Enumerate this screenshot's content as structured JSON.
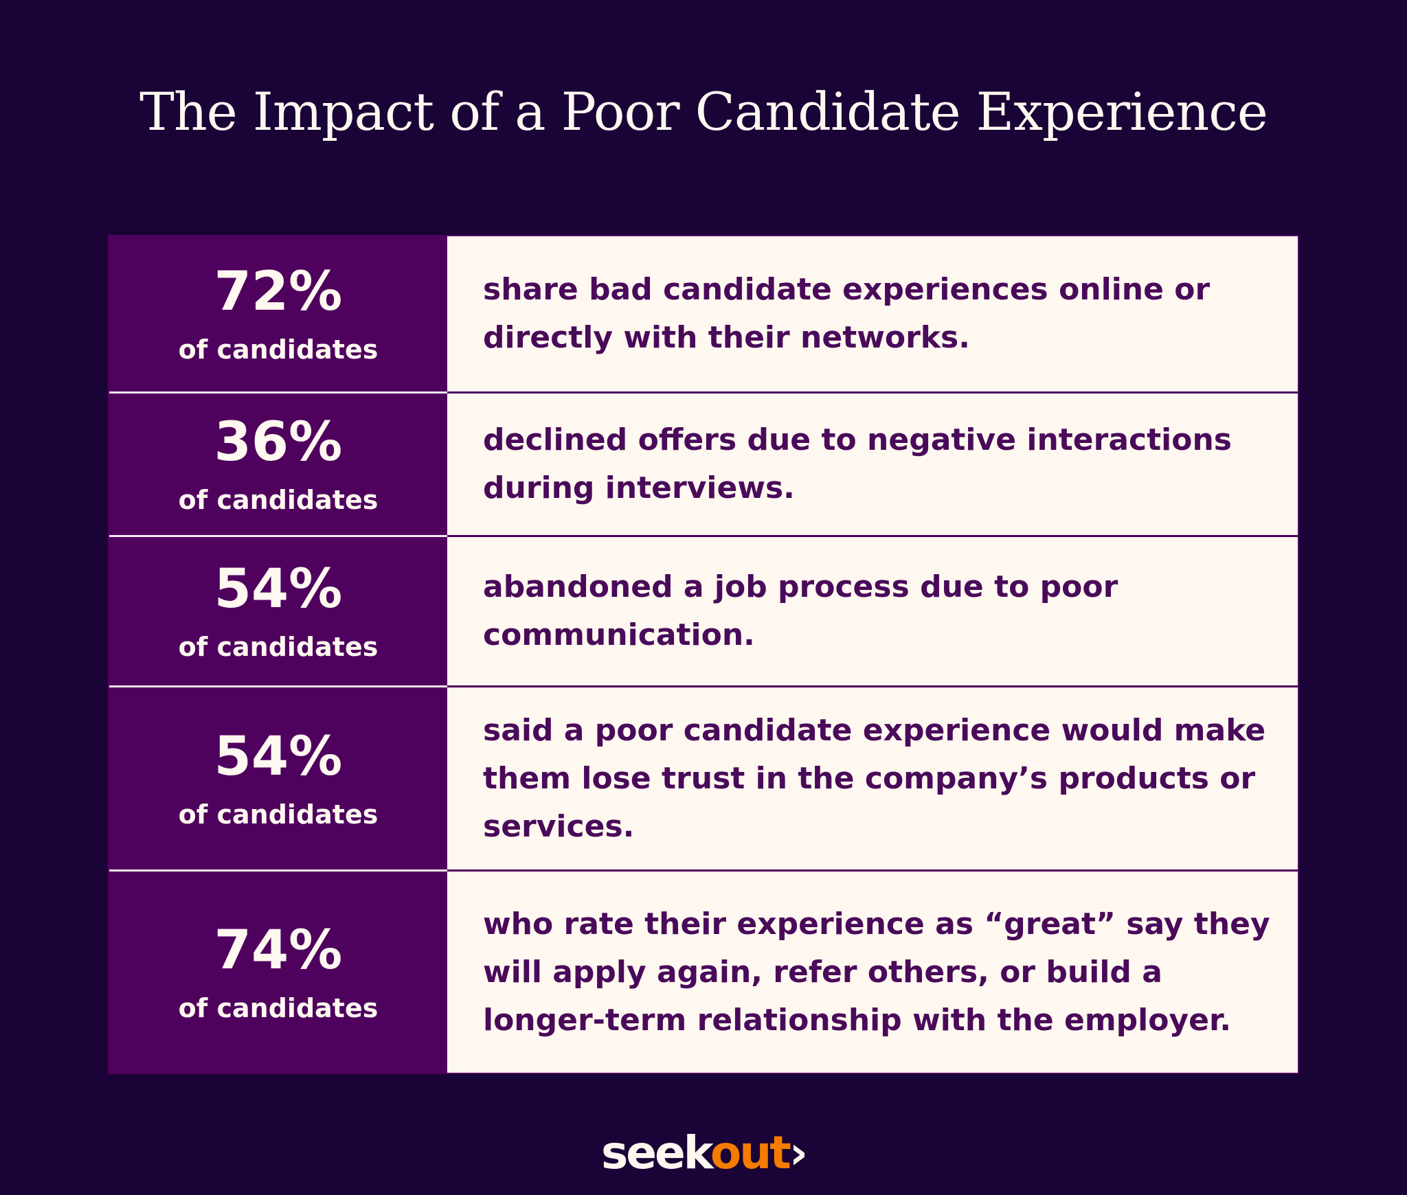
{
  "title": "The Impact of a Poor Candidate Experience",
  "rows": [
    {
      "stat": "72%",
      "subject": "of candidates",
      "text": "share bad candidate experiences online or directly with their networks."
    },
    {
      "stat": "36%",
      "subject": "of candidates",
      "text": "declined offers due to negative interactions during interviews."
    },
    {
      "stat": "54%",
      "subject": "of candidates",
      "text": "abandoned a job process due to poor communication."
    },
    {
      "stat": "54%",
      "subject": "of candidates",
      "text": "said a poor candidate experience would make them lose trust in the company’s products or services."
    },
    {
      "stat": "74%",
      "subject": "of candidates",
      "text": "who rate their experience as “great” say they will apply again, refer others, or build a longer-term relationship with the employer."
    }
  ],
  "logo": {
    "part1": "seek",
    "part2": "out",
    "chevron": "›"
  },
  "colors": {
    "background": "#1a0336",
    "stat_cell": "#4f015e",
    "text_cell": "#fef8f0",
    "accent": "#f57c00"
  }
}
